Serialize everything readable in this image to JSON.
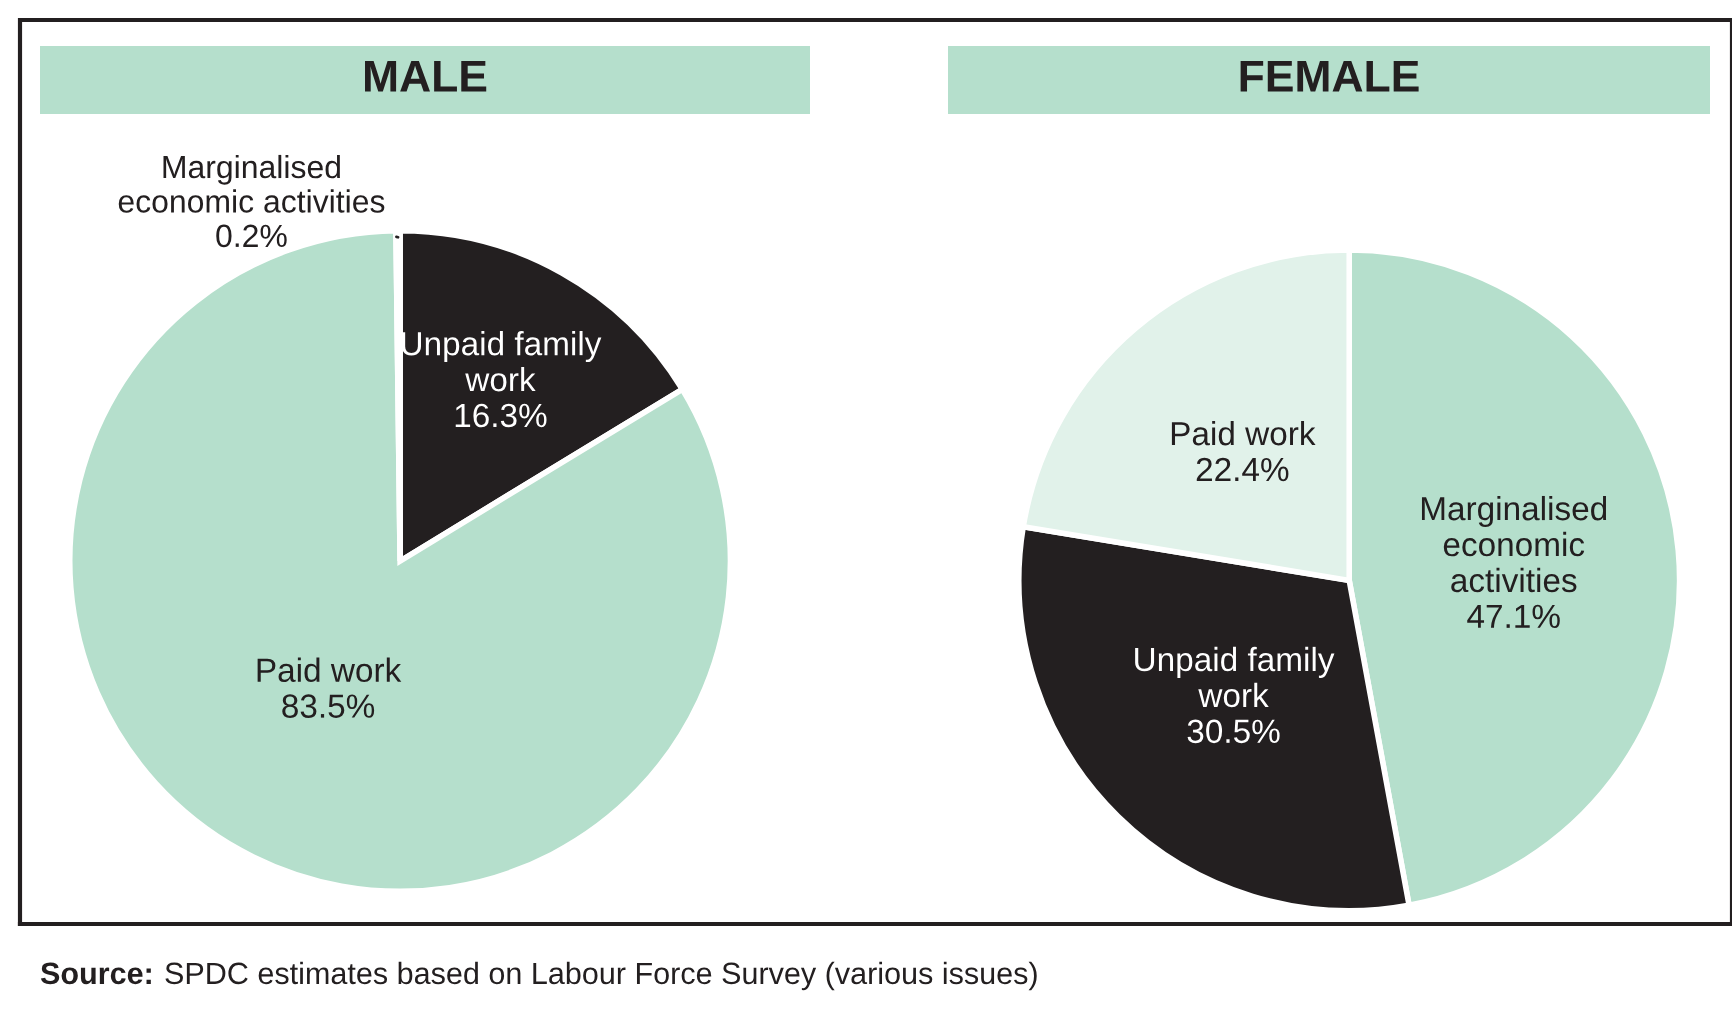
{
  "chart_data": [
    {
      "type": "pie",
      "title": "MALE",
      "categories": [
        "Unpaid family work",
        "Paid work",
        "Marginalised economic activities"
      ],
      "values": [
        16.3,
        83.5,
        0.2
      ],
      "value_labels": [
        "16.3%",
        "83.5%",
        "0.2%"
      ],
      "colors": [
        "#231f20",
        "#b5dfcc",
        "#b5dfcc"
      ],
      "annotations": [
        "Source: SPDC estimates based on Labour Force Survey (various issues)"
      ]
    },
    {
      "type": "pie",
      "title": "FEMALE",
      "categories": [
        "Marginalised economic activities",
        "Unpaid family work",
        "Paid work"
      ],
      "values": [
        47.1,
        30.5,
        22.4
      ],
      "value_labels": [
        "47.1%",
        "30.5%",
        "22.4%"
      ],
      "colors": [
        "#b5dfcc",
        "#231f20",
        "#e1f2ea"
      ]
    }
  ]
}
